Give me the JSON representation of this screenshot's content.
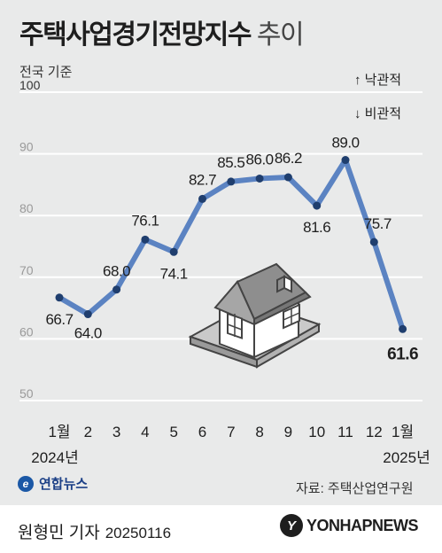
{
  "header": {
    "title_main": "주택사업경기전망지수",
    "title_sub": "추이",
    "basis": "전국 기준",
    "legend_up": "↑ 낙관적",
    "legend_down": "↓ 비관적"
  },
  "chart_data": {
    "type": "line",
    "categories": [
      "1월",
      "2",
      "3",
      "4",
      "5",
      "6",
      "7",
      "8",
      "9",
      "10",
      "11",
      "12",
      "1월"
    ],
    "year_labels": [
      "2024년",
      "2025년"
    ],
    "values": [
      66.7,
      64.0,
      68.0,
      76.1,
      74.1,
      82.7,
      85.5,
      86.0,
      86.2,
      81.6,
      89.0,
      75.7,
      61.6
    ],
    "value_labels": [
      "66.7",
      "64.0",
      "68.0",
      "76.1",
      "74.1",
      "82.7",
      "85.5",
      "86.0",
      "86.2",
      "81.6",
      "89.0",
      "75.7",
      "61.6"
    ],
    "highlight_index": 12,
    "yticks": [
      "50",
      "60",
      "70",
      "80",
      "90",
      "100"
    ],
    "ylim": [
      50,
      100
    ],
    "grid": true,
    "title": "주택사업경기전망지수 추이",
    "xlabel": "",
    "ylabel": "",
    "colors": {
      "line": "#5b83c2",
      "marker": "#1f3e6e",
      "grid": "#ffffff",
      "background": "#e9eaea"
    }
  },
  "footer": {
    "source": "자료: 주택산업연구원",
    "agency": "연합뉴스",
    "reporter": "원형민 기자",
    "date": "20250116",
    "logo_text": "YONHAPNEWS",
    "logo_mark": "Y"
  }
}
